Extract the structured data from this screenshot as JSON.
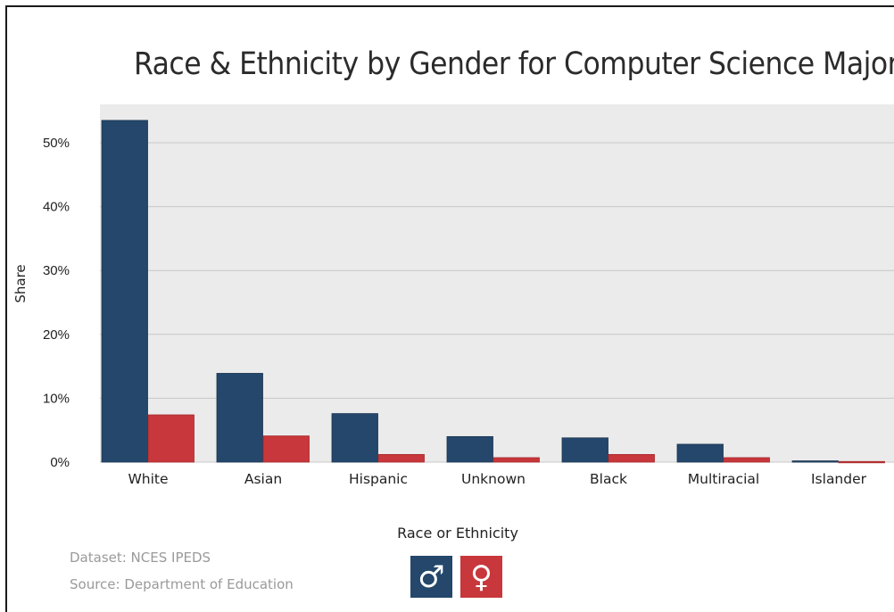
{
  "chart_data": {
    "type": "bar",
    "title": "Race & Ethnicity by Gender for Computer Science Majors",
    "xlabel": "Race or Ethnicity",
    "ylabel": "Share",
    "ylim": [
      0,
      0.55
    ],
    "yticks": [
      0,
      0.1,
      0.2,
      0.3,
      0.4,
      0.5
    ],
    "yticklabels": [
      "0%",
      "10%",
      "20%",
      "30%",
      "40%",
      "50%"
    ],
    "grid": true,
    "categories": [
      "White",
      "Asian",
      "Hispanic",
      "Unknown",
      "Black",
      "Multiracial",
      "Islander"
    ],
    "series": [
      {
        "name": "Male",
        "color": "#24476b",
        "values": [
          0.535,
          0.139,
          0.076,
          0.04,
          0.038,
          0.028,
          0.002
        ]
      },
      {
        "name": "Female",
        "color": "#c8373b",
        "values": [
          0.074,
          0.041,
          0.012,
          0.007,
          0.012,
          0.007,
          0.001
        ]
      }
    ],
    "legend_position": "bottom"
  },
  "legend": {
    "male_icon": "male-symbol-icon",
    "female_icon": "female-symbol-icon",
    "male_glyph": "♂",
    "female_glyph": "♀"
  },
  "footer": {
    "dataset": "Dataset: NCES IPEDS",
    "source": "Source: Department of Education"
  },
  "colors": {
    "plot_background": "#ebebeb",
    "gridline": "#c8c8c8"
  }
}
